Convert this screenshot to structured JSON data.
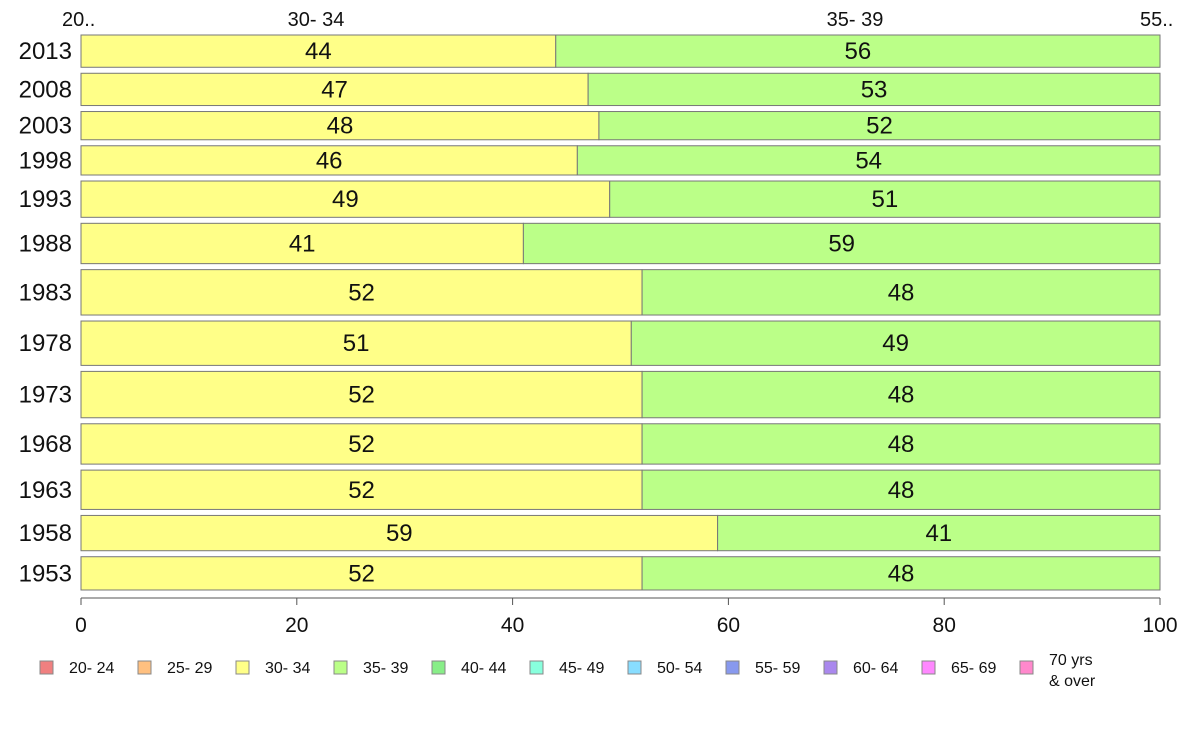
{
  "chart_data": {
    "type": "bar",
    "orientation": "horizontal",
    "stacked": true,
    "title": "",
    "xlabel": "",
    "ylabel": "",
    "xlim": [
      0,
      100
    ],
    "x_ticks": [
      "0",
      "20",
      "40",
      "60",
      "80",
      "100"
    ],
    "grid": false,
    "legend_position": "bottom",
    "top_labels": [
      "20..",
      "30- 34",
      "35- 39",
      "55.."
    ],
    "categories": [
      "2013",
      "2008",
      "2003",
      "1998",
      "1993",
      "1988",
      "1983",
      "1978",
      "1973",
      "1968",
      "1963",
      "1958",
      "1953"
    ],
    "row_weights": [
      32,
      32,
      28,
      29,
      36,
      40,
      45,
      44,
      46,
      40,
      39,
      35,
      33
    ],
    "series": [
      {
        "name": "20- 24",
        "color": "#f08080",
        "values": [
          0,
          0,
          0,
          0,
          0,
          0,
          0,
          0,
          0,
          0,
          0,
          0,
          0
        ]
      },
      {
        "name": "25- 29",
        "color": "#ffc080",
        "values": [
          0,
          0,
          0,
          0,
          0,
          0,
          0,
          0,
          0,
          0,
          0,
          0,
          0
        ]
      },
      {
        "name": "30- 34",
        "color": "#ffff88",
        "values": [
          44,
          47,
          48,
          46,
          49,
          41,
          52,
          51,
          52,
          52,
          52,
          59,
          52
        ]
      },
      {
        "name": "35- 39",
        "color": "#bbff88",
        "values": [
          56,
          53,
          52,
          54,
          51,
          59,
          48,
          49,
          48,
          48,
          48,
          41,
          48
        ]
      },
      {
        "name": "40- 44",
        "color": "#88ee88",
        "values": [
          0,
          0,
          0,
          0,
          0,
          0,
          0,
          0,
          0,
          0,
          0,
          0,
          0
        ]
      },
      {
        "name": "45- 49",
        "color": "#88ffdd",
        "values": [
          0,
          0,
          0,
          0,
          0,
          0,
          0,
          0,
          0,
          0,
          0,
          0,
          0
        ]
      },
      {
        "name": "50- 54",
        "color": "#88ddff",
        "values": [
          0,
          0,
          0,
          0,
          0,
          0,
          0,
          0,
          0,
          0,
          0,
          0,
          0
        ]
      },
      {
        "name": "55- 59",
        "color": "#8899ee",
        "values": [
          0,
          0,
          0,
          0,
          0,
          0,
          0,
          0,
          0,
          0,
          0,
          0,
          0
        ]
      },
      {
        "name": "60- 64",
        "color": "#aa88ee",
        "values": [
          0,
          0,
          0,
          0,
          0,
          0,
          0,
          0,
          0,
          0,
          0,
          0,
          0
        ]
      },
      {
        "name": "65- 69",
        "color": "#ff88ff",
        "values": [
          0,
          0,
          0,
          0,
          0,
          0,
          0,
          0,
          0,
          0,
          0,
          0,
          0
        ]
      },
      {
        "name": "70 yrs\n& over",
        "color": "#ff88cc",
        "values": [
          0,
          0,
          0,
          0,
          0,
          0,
          0,
          0,
          0,
          0,
          0,
          0,
          0
        ]
      }
    ]
  }
}
